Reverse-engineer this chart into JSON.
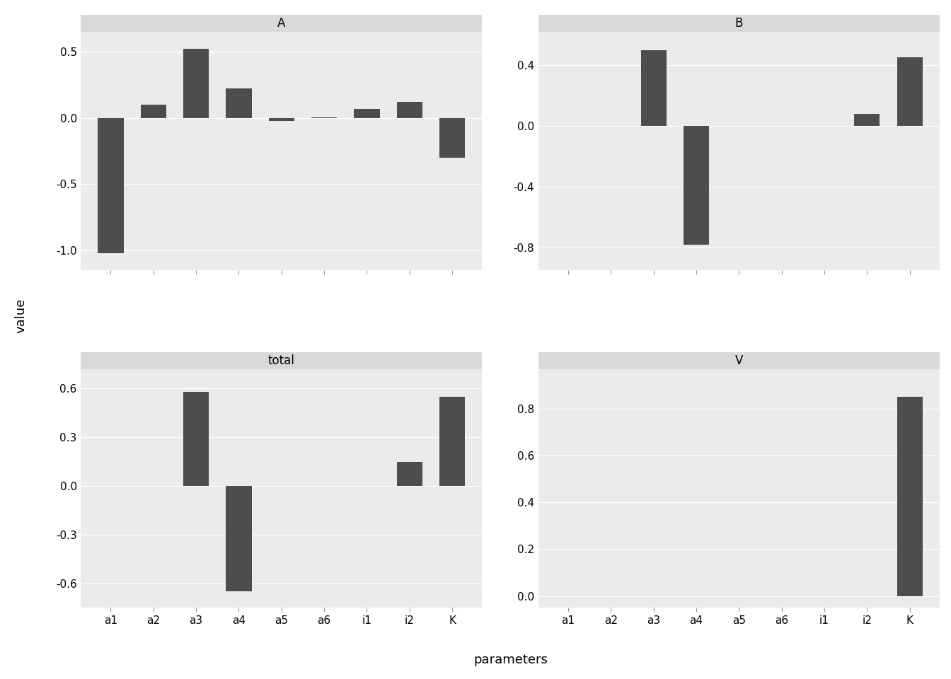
{
  "panels": [
    "A",
    "B",
    "total",
    "V"
  ],
  "parameters": [
    "a1",
    "a2",
    "a3",
    "a4",
    "a5",
    "a6",
    "i1",
    "i2",
    "K"
  ],
  "values": {
    "A": [
      -1.02,
      0.1,
      0.52,
      0.22,
      -0.022,
      0.001,
      0.07,
      0.12,
      -0.3
    ],
    "B": [
      0.0,
      0.0,
      0.5,
      -0.78,
      0.0,
      0.0,
      0.0,
      0.08,
      0.45
    ],
    "total": [
      0.0,
      0.0,
      0.58,
      -0.65,
      0.0,
      0.0,
      0.0,
      0.15,
      0.55
    ],
    "V": [
      0.0,
      0.0,
      0.0,
      0.0,
      0.0,
      0.0,
      0.0,
      0.0,
      0.85
    ]
  },
  "ylims": {
    "A": [
      -1.15,
      0.65
    ],
    "B": [
      -0.95,
      0.62
    ],
    "total": [
      -0.75,
      0.72
    ],
    "V": [
      -0.05,
      0.97
    ]
  },
  "yticks": {
    "A": [
      -1.0,
      -0.5,
      0.0,
      0.5
    ],
    "B": [
      -0.8,
      -0.4,
      0.0,
      0.4
    ],
    "total": [
      -0.6,
      -0.3,
      0.0,
      0.3,
      0.6
    ],
    "V": [
      0.0,
      0.2,
      0.4,
      0.6,
      0.8
    ]
  },
  "bar_color": "#4d4d4d",
  "strip_bg": "#d9d9d9",
  "plot_bg": "#ebebeb",
  "grid_color": "#ffffff",
  "fig_bg": "#ffffff",
  "outer_rect_bg": "#e8e8e8",
  "title_fontsize": 12,
  "axis_label_fontsize": 13,
  "tick_fontsize": 11,
  "strip_fontsize": 12,
  "ylabel": "value",
  "xlabel": "parameters"
}
